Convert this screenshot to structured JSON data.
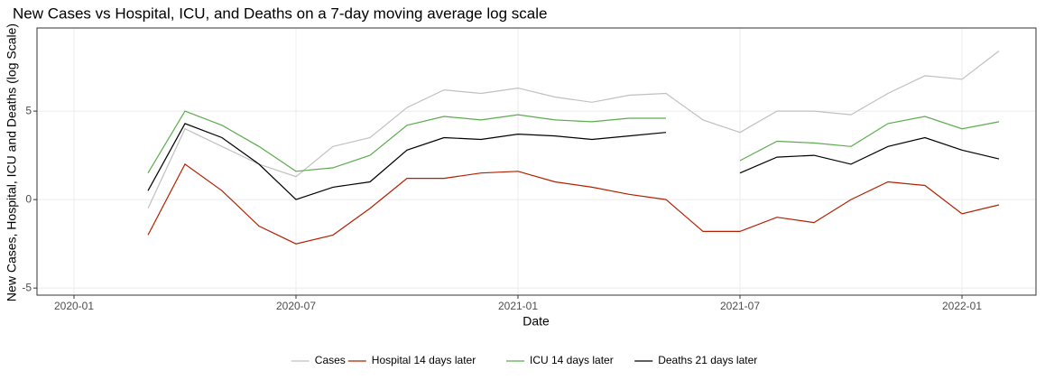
{
  "chart_data": {
    "type": "line",
    "title": "New Cases vs Hospital, ICU, and Deaths on a 7-day moving average log scale",
    "x_label": "Date",
    "y_label": "New Cases, Hospital, ICU and Deaths (log Scale)",
    "x": [
      "2020-03",
      "2020-04",
      "2020-05",
      "2020-06",
      "2020-07",
      "2020-08",
      "2020-09",
      "2020-10",
      "2020-11",
      "2020-12",
      "2021-01",
      "2021-02",
      "2021-03",
      "2021-04",
      "2021-05",
      "2021-06",
      "2021-07",
      "2021-08",
      "2021-09",
      "2021-10",
      "2021-11",
      "2021-12",
      "2022-01",
      "2022-02"
    ],
    "series": [
      {
        "name": "Cases",
        "color": "#c0c0c0",
        "values": [
          -0.5,
          4.0,
          3.0,
          2.0,
          1.3,
          3.0,
          3.5,
          5.2,
          6.2,
          6.0,
          6.3,
          5.8,
          5.5,
          5.9,
          6.0,
          4.5,
          3.8,
          5.0,
          5.0,
          4.8,
          6.0,
          7.0,
          6.8,
          8.4
        ]
      },
      {
        "name": "Hospital 14 days later",
        "color": "#b22000",
        "values": [
          -2.0,
          2.0,
          0.5,
          -1.5,
          -2.5,
          -2.0,
          -0.5,
          1.2,
          1.2,
          1.5,
          1.6,
          1.0,
          0.7,
          0.3,
          0.0,
          -1.8,
          -1.8,
          -1.0,
          -1.3,
          0.0,
          1.0,
          0.8,
          -0.8,
          -0.3
        ]
      },
      {
        "name": "ICU 14 days later",
        "color": "#5cab4e",
        "values": [
          1.5,
          5.0,
          4.2,
          3.0,
          1.6,
          1.8,
          2.5,
          4.2,
          4.7,
          4.5,
          4.8,
          4.5,
          4.4,
          4.6,
          4.6,
          null,
          2.2,
          3.3,
          3.2,
          3.0,
          4.3,
          4.7,
          4.0,
          4.4
        ]
      },
      {
        "name": "Deaths 21 days later",
        "color": "#000000",
        "values": [
          0.5,
          4.3,
          3.5,
          2.0,
          0.0,
          0.7,
          1.0,
          2.8,
          3.5,
          3.4,
          3.7,
          3.6,
          3.4,
          3.6,
          3.8,
          null,
          1.5,
          2.4,
          2.5,
          2.0,
          3.0,
          3.5,
          2.8,
          2.3
        ]
      }
    ],
    "xlim": [
      "2019-12",
      "2022-03"
    ],
    "xticks": [
      "2020-01",
      "2020-07",
      "2021-01",
      "2021-07",
      "2022-01"
    ],
    "ylim": [
      -5.4,
      9.7
    ],
    "yticks": [
      -5,
      0,
      5
    ],
    "grid": true,
    "legend": "bottom"
  }
}
